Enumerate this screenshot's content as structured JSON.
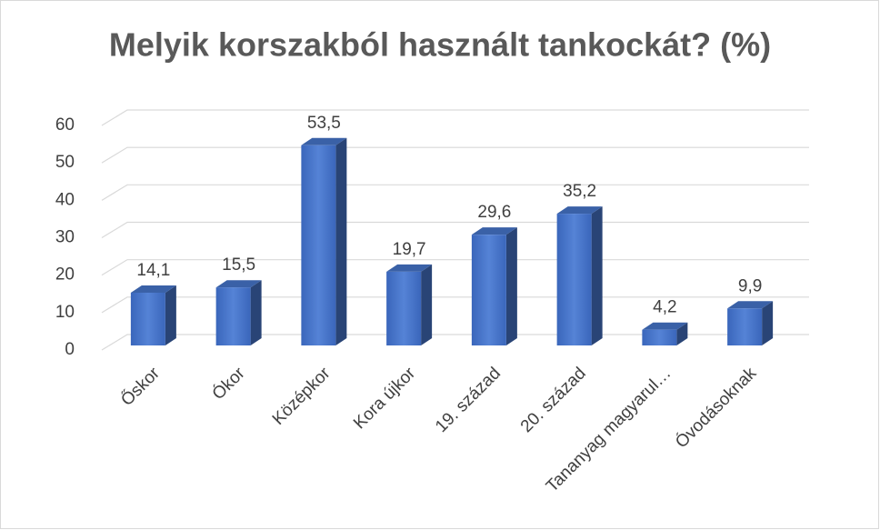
{
  "chart_data": {
    "type": "bar3d",
    "title": "Melyik korszakból használt tankockát? (%)",
    "categories": [
      "Őskor",
      "Ókor",
      "Középkor",
      "Kora újkor",
      "19. század",
      "20. század",
      "Tananyag magyarul…",
      "Óvodásoknak"
    ],
    "values": [
      14.1,
      15.5,
      53.5,
      19.7,
      29.6,
      35.2,
      4.2,
      9.9
    ],
    "value_labels": [
      "14,1",
      "15,5",
      "53,5",
      "19,7",
      "29,6",
      "35,2",
      "4,2",
      "9,9"
    ],
    "color": "#4472c4",
    "ylim": [
      0,
      60
    ],
    "yticks": [
      0,
      10,
      20,
      30,
      40,
      50,
      60
    ],
    "grid": true
  }
}
